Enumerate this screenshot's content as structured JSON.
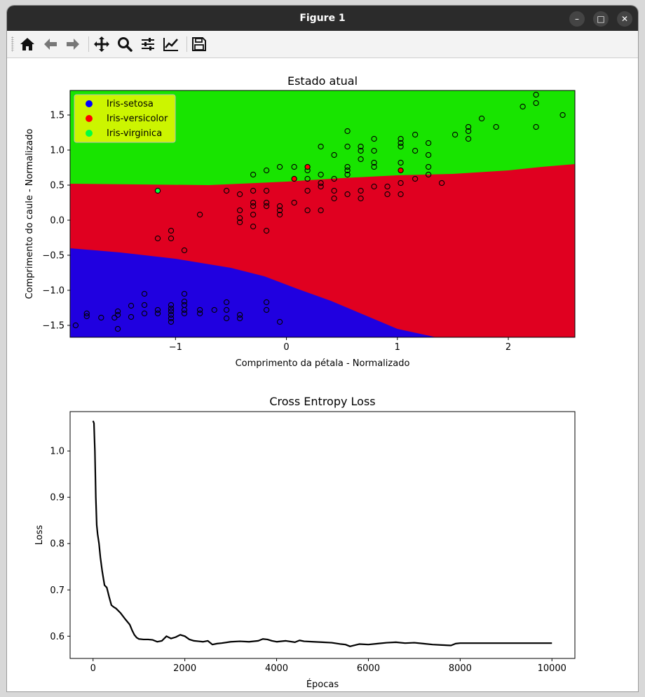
{
  "window": {
    "title": "Figure 1",
    "minimize_glyph": "–",
    "maximize_glyph": "□",
    "close_glyph": "✕"
  },
  "toolbar": {
    "icons": [
      "home-icon",
      "back-arrow-icon",
      "forward-arrow-icon",
      "pan-move-icon",
      "zoom-magnifier-icon",
      "subplots-sliders-icon",
      "edit-axes-icon",
      "save-floppy-icon"
    ]
  },
  "colors": {
    "setosa": "#2000e0",
    "versicolor": "#e00020",
    "virginica": "#18e400",
    "legend_bg": "#ccf500",
    "setosa_marker": "#0000ff",
    "versicolor_marker": "#ff0000",
    "virginica_marker": "#00ff40",
    "loss_line": "#000000"
  },
  "chart_data": [
    {
      "type": "scatter",
      "title": "Estado atual",
      "xlabel": "Comprimento da pétala - Normalizado",
      "ylabel": "Comprimento do caule - Normalizado",
      "xlim": [
        -1.95,
        2.6
      ],
      "ylim": [
        -1.67,
        1.85
      ],
      "xticks": [
        -1,
        0,
        1,
        2
      ],
      "xtick_labels": [
        "−1",
        "0",
        "1",
        "2"
      ],
      "yticks": [
        -1.5,
        -1.0,
        -0.5,
        0.0,
        0.5,
        1.0,
        1.5
      ],
      "ytick_labels": [
        "−1.5",
        "−1.0",
        "−0.5",
        "0.0",
        "0.5",
        "1.0",
        "1.5"
      ],
      "legend_placement": "top-left",
      "legend": [
        {
          "label": "Iris-setosa",
          "color_key": "setosa_marker"
        },
        {
          "label": "Iris-versicolor",
          "color_key": "versicolor_marker"
        },
        {
          "label": "Iris-virginica",
          "color_key": "virginica_marker"
        }
      ],
      "regions": {
        "green_red_boundary": [
          [
            -1.95,
            0.52
          ],
          [
            -0.7,
            0.5
          ],
          [
            0.0,
            0.55
          ],
          [
            0.5,
            0.6
          ],
          [
            1.0,
            0.64
          ],
          [
            1.5,
            0.66
          ],
          [
            2.0,
            0.71
          ],
          [
            2.3,
            0.76
          ],
          [
            2.6,
            0.8
          ]
        ],
        "red_blue_boundary": [
          [
            -1.95,
            -0.4
          ],
          [
            -1.5,
            -0.46
          ],
          [
            -1.0,
            -0.55
          ],
          [
            -0.5,
            -0.68
          ],
          [
            -0.2,
            -0.8
          ],
          [
            0.1,
            -0.98
          ],
          [
            0.4,
            -1.15
          ],
          [
            0.7,
            -1.35
          ],
          [
            1.0,
            -1.55
          ],
          [
            1.35,
            -1.67
          ]
        ]
      },
      "points": [
        {
          "x": -1.9,
          "y": -1.5,
          "c": ""
        },
        {
          "x": -1.8,
          "y": -1.37,
          "c": ""
        },
        {
          "x": -1.8,
          "y": -1.33,
          "c": ""
        },
        {
          "x": -1.67,
          "y": -1.39,
          "c": ""
        },
        {
          "x": -1.55,
          "y": -1.39,
          "c": ""
        },
        {
          "x": -1.52,
          "y": -1.55,
          "c": ""
        },
        {
          "x": -1.52,
          "y": -1.3,
          "c": ""
        },
        {
          "x": -1.52,
          "y": -1.35,
          "c": ""
        },
        {
          "x": -1.4,
          "y": -1.22,
          "c": ""
        },
        {
          "x": -1.4,
          "y": -1.38,
          "c": ""
        },
        {
          "x": -1.28,
          "y": -1.05,
          "c": ""
        },
        {
          "x": -1.28,
          "y": -1.21,
          "c": ""
        },
        {
          "x": -1.28,
          "y": -1.33,
          "c": ""
        },
        {
          "x": -1.16,
          "y": -1.28,
          "c": ""
        },
        {
          "x": -1.16,
          "y": -1.33,
          "c": ""
        },
        {
          "x": -1.04,
          "y": -1.21,
          "c": ""
        },
        {
          "x": -1.04,
          "y": -1.26,
          "c": ""
        },
        {
          "x": -1.04,
          "y": -1.3,
          "c": ""
        },
        {
          "x": -1.04,
          "y": -1.35,
          "c": ""
        },
        {
          "x": -1.04,
          "y": -1.4,
          "c": ""
        },
        {
          "x": -1.04,
          "y": -1.45,
          "c": ""
        },
        {
          "x": -0.92,
          "y": -1.05,
          "c": ""
        },
        {
          "x": -0.92,
          "y": -1.16,
          "c": ""
        },
        {
          "x": -0.92,
          "y": -1.21,
          "c": ""
        },
        {
          "x": -0.92,
          "y": -1.28,
          "c": ""
        },
        {
          "x": -0.92,
          "y": -1.33,
          "c": ""
        },
        {
          "x": -0.78,
          "y": -1.28,
          "c": ""
        },
        {
          "x": -0.78,
          "y": -1.33,
          "c": ""
        },
        {
          "x": -0.65,
          "y": -1.28,
          "c": ""
        },
        {
          "x": -0.54,
          "y": -1.17,
          "c": ""
        },
        {
          "x": -0.54,
          "y": -1.28,
          "c": ""
        },
        {
          "x": -0.54,
          "y": -1.4,
          "c": ""
        },
        {
          "x": -0.42,
          "y": -1.35,
          "c": ""
        },
        {
          "x": -0.42,
          "y": -1.4,
          "c": ""
        },
        {
          "x": -0.18,
          "y": -1.17,
          "c": ""
        },
        {
          "x": -0.18,
          "y": -1.28,
          "c": ""
        },
        {
          "x": -0.06,
          "y": -1.45,
          "c": ""
        },
        {
          "x": -1.16,
          "y": -0.26,
          "c": ""
        },
        {
          "x": -1.04,
          "y": -0.15,
          "c": ""
        },
        {
          "x": -1.04,
          "y": -0.26,
          "c": ""
        },
        {
          "x": -0.92,
          "y": -0.43,
          "c": ""
        },
        {
          "x": -0.78,
          "y": 0.08,
          "c": ""
        },
        {
          "x": -0.54,
          "y": 0.42,
          "c": ""
        },
        {
          "x": -0.42,
          "y": 0.37,
          "c": ""
        },
        {
          "x": -0.42,
          "y": 0.14,
          "c": ""
        },
        {
          "x": -0.42,
          "y": 0.03,
          "c": ""
        },
        {
          "x": -0.42,
          "y": -0.03,
          "c": ""
        },
        {
          "x": -0.3,
          "y": 0.42,
          "c": ""
        },
        {
          "x": -0.3,
          "y": 0.25,
          "c": ""
        },
        {
          "x": -0.3,
          "y": 0.2,
          "c": ""
        },
        {
          "x": -0.3,
          "y": 0.08,
          "c": ""
        },
        {
          "x": -0.3,
          "y": -0.09,
          "c": ""
        },
        {
          "x": -0.18,
          "y": 0.42,
          "c": ""
        },
        {
          "x": -0.18,
          "y": 0.25,
          "c": ""
        },
        {
          "x": -0.18,
          "y": 0.2,
          "c": ""
        },
        {
          "x": -0.18,
          "y": -0.15,
          "c": ""
        },
        {
          "x": -0.06,
          "y": 0.2,
          "c": ""
        },
        {
          "x": -0.06,
          "y": 0.14,
          "c": ""
        },
        {
          "x": -0.06,
          "y": 0.08,
          "c": ""
        },
        {
          "x": 0.07,
          "y": 0.25,
          "c": ""
        },
        {
          "x": 0.19,
          "y": 0.42,
          "c": ""
        },
        {
          "x": 0.19,
          "y": 0.14,
          "c": ""
        },
        {
          "x": 0.31,
          "y": 0.14,
          "c": ""
        },
        {
          "x": 0.31,
          "y": 0.48,
          "c": ""
        },
        {
          "x": 0.31,
          "y": 0.53,
          "c": ""
        },
        {
          "x": 0.43,
          "y": 0.42,
          "c": ""
        },
        {
          "x": 0.43,
          "y": 0.31,
          "c": ""
        },
        {
          "x": 0.55,
          "y": 0.37,
          "c": ""
        },
        {
          "x": 0.67,
          "y": 0.42,
          "c": ""
        },
        {
          "x": 0.67,
          "y": 0.31,
          "c": ""
        },
        {
          "x": 0.79,
          "y": 0.48,
          "c": ""
        },
        {
          "x": 0.91,
          "y": 0.48,
          "c": ""
        },
        {
          "x": 0.91,
          "y": 0.37,
          "c": ""
        },
        {
          "x": 1.03,
          "y": 0.37,
          "c": ""
        },
        {
          "x": 1.03,
          "y": 0.53,
          "c": ""
        },
        {
          "x": 1.16,
          "y": 0.59,
          "c": ""
        },
        {
          "x": 1.4,
          "y": 0.53,
          "c": ""
        },
        {
          "x": -0.3,
          "y": 0.65,
          "c": ""
        },
        {
          "x": -0.18,
          "y": 0.71,
          "c": ""
        },
        {
          "x": -0.06,
          "y": 0.76,
          "c": ""
        },
        {
          "x": 0.07,
          "y": 0.76,
          "c": ""
        },
        {
          "x": 0.19,
          "y": 0.71,
          "c": ""
        },
        {
          "x": 0.19,
          "y": 0.59,
          "c": ""
        },
        {
          "x": 0.31,
          "y": 0.65,
          "c": ""
        },
        {
          "x": 0.31,
          "y": 1.05,
          "c": ""
        },
        {
          "x": 0.43,
          "y": 0.93,
          "c": ""
        },
        {
          "x": 0.43,
          "y": 0.59,
          "c": ""
        },
        {
          "x": 0.55,
          "y": 1.27,
          "c": ""
        },
        {
          "x": 0.55,
          "y": 1.05,
          "c": ""
        },
        {
          "x": 0.55,
          "y": 0.76,
          "c": ""
        },
        {
          "x": 0.55,
          "y": 0.71,
          "c": ""
        },
        {
          "x": 0.55,
          "y": 0.65,
          "c": ""
        },
        {
          "x": 0.67,
          "y": 1.05,
          "c": ""
        },
        {
          "x": 0.67,
          "y": 0.99,
          "c": ""
        },
        {
          "x": 0.67,
          "y": 0.87,
          "c": ""
        },
        {
          "x": 0.79,
          "y": 1.16,
          "c": ""
        },
        {
          "x": 0.79,
          "y": 0.99,
          "c": ""
        },
        {
          "x": 0.79,
          "y": 0.82,
          "c": ""
        },
        {
          "x": 0.79,
          "y": 0.76,
          "c": ""
        },
        {
          "x": 1.03,
          "y": 1.16,
          "c": ""
        },
        {
          "x": 1.03,
          "y": 1.1,
          "c": ""
        },
        {
          "x": 1.03,
          "y": 1.05,
          "c": ""
        },
        {
          "x": 1.03,
          "y": 0.82,
          "c": ""
        },
        {
          "x": 1.16,
          "y": 1.22,
          "c": ""
        },
        {
          "x": 1.16,
          "y": 0.99,
          "c": ""
        },
        {
          "x": 1.28,
          "y": 1.1,
          "c": ""
        },
        {
          "x": 1.28,
          "y": 0.93,
          "c": ""
        },
        {
          "x": 1.28,
          "y": 0.76,
          "c": ""
        },
        {
          "x": 1.28,
          "y": 0.65,
          "c": ""
        },
        {
          "x": 1.52,
          "y": 1.22,
          "c": ""
        },
        {
          "x": 1.64,
          "y": 1.33,
          "c": ""
        },
        {
          "x": 1.64,
          "y": 1.27,
          "c": ""
        },
        {
          "x": 1.64,
          "y": 1.16,
          "c": ""
        },
        {
          "x": 1.76,
          "y": 1.45,
          "c": ""
        },
        {
          "x": 1.89,
          "y": 1.33,
          "c": ""
        },
        {
          "x": 2.13,
          "y": 1.62,
          "c": ""
        },
        {
          "x": 2.25,
          "y": 1.79,
          "c": ""
        },
        {
          "x": 2.25,
          "y": 1.67,
          "c": ""
        },
        {
          "x": 2.25,
          "y": 1.33,
          "c": ""
        },
        {
          "x": 2.49,
          "y": 1.5,
          "c": ""
        },
        {
          "x": 0.07,
          "y": 0.59,
          "c": "versicolor_marker"
        },
        {
          "x": 0.19,
          "y": 0.76,
          "c": "versicolor_marker"
        },
        {
          "x": 1.03,
          "y": 0.71,
          "c": "versicolor_marker"
        },
        {
          "x": -1.16,
          "y": 0.42,
          "c": "virginica_marker"
        }
      ]
    },
    {
      "type": "line",
      "title": "Cross Entropy Loss",
      "xlabel": "Épocas",
      "ylabel": "Loss",
      "xlim": [
        -500,
        10500
      ],
      "ylim": [
        0.552,
        1.085
      ],
      "xticks": [
        0,
        2000,
        4000,
        6000,
        8000,
        10000
      ],
      "xtick_labels": [
        "0",
        "2000",
        "4000",
        "6000",
        "8000",
        "10000"
      ],
      "yticks": [
        0.6,
        0.7,
        0.8,
        0.9,
        1.0
      ],
      "ytick_labels": [
        "0.6",
        "0.7",
        "0.8",
        "0.9",
        "1.0"
      ],
      "series": [
        {
          "x": [
            0,
            20,
            40,
            60,
            80,
            100,
            130,
            160,
            200,
            250,
            300,
            350,
            400,
            450,
            500,
            600,
            700,
            800,
            850,
            900,
            950,
            1000,
            1100,
            1200,
            1300,
            1400,
            1500,
            1600,
            1700,
            1800,
            1900,
            2000,
            2100,
            2200,
            2300,
            2400,
            2500,
            2600,
            2700,
            2800,
            3000,
            3200,
            3400,
            3600,
            3700,
            3800,
            3900,
            4000,
            4200,
            4400,
            4500,
            4600,
            4800,
            5000,
            5200,
            5400,
            5500,
            5600,
            5800,
            6000,
            6200,
            6400,
            6600,
            6800,
            7000,
            7200,
            7400,
            7600,
            7800,
            7900,
            8000,
            8500,
            9000,
            9500,
            10000
          ],
          "y": [
            1.065,
            1.06,
            1.0,
            0.9,
            0.84,
            0.82,
            0.8,
            0.77,
            0.74,
            0.71,
            0.705,
            0.685,
            0.667,
            0.663,
            0.66,
            0.65,
            0.637,
            0.625,
            0.613,
            0.603,
            0.597,
            0.594,
            0.593,
            0.593,
            0.592,
            0.588,
            0.59,
            0.6,
            0.595,
            0.598,
            0.603,
            0.6,
            0.593,
            0.59,
            0.589,
            0.588,
            0.59,
            0.582,
            0.584,
            0.585,
            0.588,
            0.589,
            0.588,
            0.59,
            0.594,
            0.593,
            0.59,
            0.588,
            0.59,
            0.587,
            0.591,
            0.589,
            0.588,
            0.587,
            0.586,
            0.583,
            0.582,
            0.578,
            0.583,
            0.582,
            0.584,
            0.586,
            0.587,
            0.585,
            0.586,
            0.584,
            0.582,
            0.581,
            0.58,
            0.584,
            0.585,
            0.585,
            0.585,
            0.585,
            0.585
          ]
        }
      ]
    }
  ]
}
